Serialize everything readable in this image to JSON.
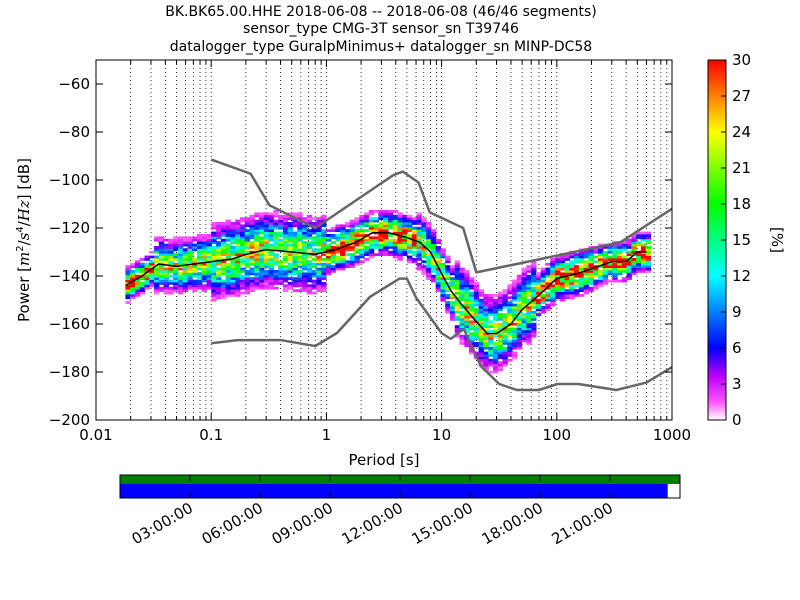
{
  "title_lines": [
    "BK.BK65.00.HHE   2018-06-08 -- 2018-06-08  (46/46 segments)",
    "sensor_type CMG-3T sensor_sn T39746",
    "datalogger_type GuralpMinimus+ datalogger_sn MINP-DC58"
  ],
  "colorbar": {
    "label": "[%]",
    "ticks": [
      "0",
      "3",
      "6",
      "9",
      "12",
      "15",
      "18",
      "21",
      "24",
      "27",
      "30"
    ],
    "range": [
      0,
      30
    ],
    "colormap": "pqlx"
  },
  "timeline": {
    "ticks": [
      "03:00:00",
      "06:00:00",
      "09:00:00",
      "12:00:00",
      "15:00:00",
      "18:00:00",
      "21:00:00"
    ],
    "top_bar_color": "#007f00",
    "bottom_bar_color": "#0000ff",
    "coverage_fraction": 0.978
  },
  "chart_data": {
    "type": "heatmap",
    "title": "BK.BK65.00.HHE   2018-06-08 -- 2018-06-08  (46/46 segments)",
    "xlabel": "Period [s]",
    "ylabel": "Power [m²/s⁴/Hz] [dB]",
    "xscale": "log",
    "xlim": [
      0.01,
      1000
    ],
    "ylim": [
      -200,
      -50
    ],
    "x_tick_labels": [
      "0.01",
      "0.1",
      "1",
      "10",
      "100",
      "1000"
    ],
    "y_tick_labels": [
      "−200",
      "−180",
      "−160",
      "−140",
      "−120",
      "−100",
      "−80",
      "−60"
    ],
    "grid": "dotted (period axis minor ticks)",
    "series": [
      {
        "style": "mode curve (black)",
        "x": [
          0.018,
          0.025,
          0.035,
          0.05,
          0.07,
          0.1,
          0.15,
          0.2,
          0.3,
          0.5,
          0.8,
          1.2,
          1.8,
          2.5,
          3.5,
          5,
          6.5,
          8,
          10,
          12,
          15,
          20,
          25,
          30,
          40,
          50,
          70,
          100,
          150,
          200,
          300,
          400,
          500,
          600
        ],
        "y": [
          -144,
          -140,
          -135,
          -136,
          -135,
          -134,
          -133,
          -131,
          -129,
          -130,
          -131,
          -129,
          -126,
          -122,
          -122,
          -124,
          -126,
          -130,
          -139,
          -146,
          -152,
          -159,
          -164,
          -164,
          -160,
          -154,
          -148,
          -141,
          -139,
          -137,
          -134,
          -134,
          -130,
          -130
        ]
      },
      {
        "style": "high noise model (gray)",
        "x": [
          0.1,
          0.22,
          0.32,
          0.8,
          3.8,
          4.6,
          6.3,
          7.9,
          15.4,
          20,
          354.8,
          1000
        ],
        "y": [
          -91.5,
          -97.4,
          -110.5,
          -120,
          -98,
          -96.5,
          -101,
          -113.5,
          -120,
          -138.5,
          -126,
          -112
        ]
      },
      {
        "style": "low noise model (gray)",
        "x": [
          0.1,
          0.17,
          0.4,
          0.8,
          1.24,
          2.4,
          4.3,
          5,
          6,
          10,
          12,
          15.6,
          21.9,
          31.6,
          45,
          70,
          101,
          154,
          328,
          600,
          1000
        ],
        "y": [
          -168,
          -166.7,
          -166.7,
          -169.2,
          -163.7,
          -148.6,
          -141.1,
          -141.1,
          -149,
          -163.8,
          -166.2,
          -162.1,
          -177.5,
          -185,
          -187.5,
          -187.5,
          -185,
          -185,
          -187.5,
          -184.4,
          -178
        ]
      }
    ]
  }
}
